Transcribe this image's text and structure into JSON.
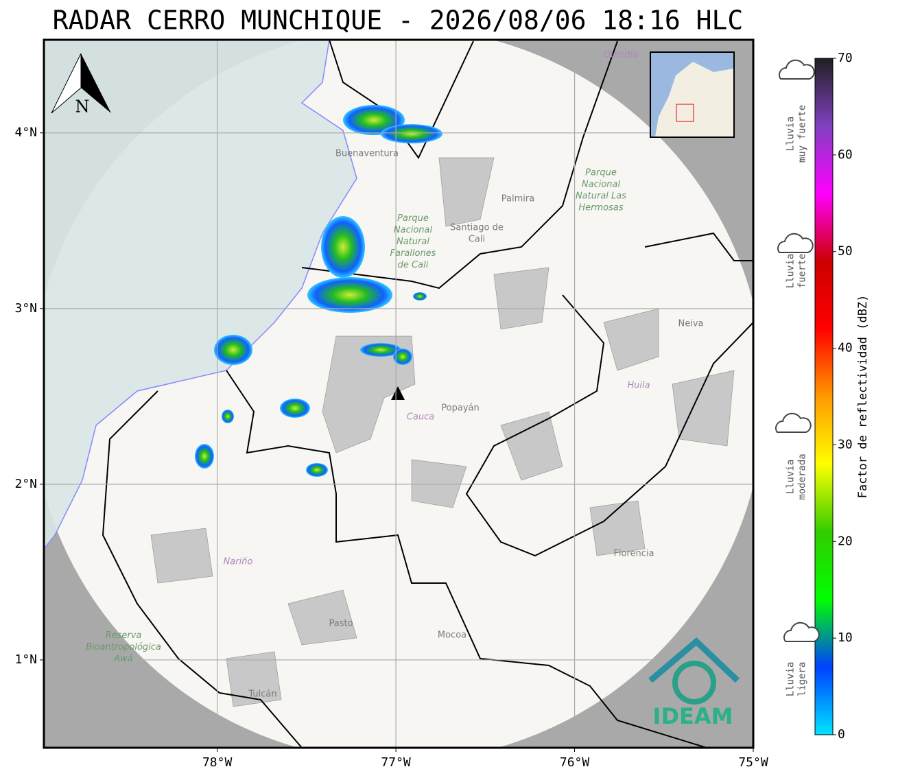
{
  "title": "RADAR CERRO MUNCHIQUE - 2026/08/06 18:16 HLC",
  "map": {
    "xlim": [
      -78.97,
      -75.0
    ],
    "ylim": [
      0.5,
      4.53
    ],
    "xticks": [
      {
        "value": -78,
        "label": "78°W"
      },
      {
        "value": -77,
        "label": "77°W"
      },
      {
        "value": -76,
        "label": "76°W"
      },
      {
        "value": -75,
        "label": "75°W"
      }
    ],
    "yticks": [
      {
        "value": 1,
        "label": "1°N"
      },
      {
        "value": 2,
        "label": "2°N"
      },
      {
        "value": 3,
        "label": "3°N"
      },
      {
        "value": 4,
        "label": "4°N"
      }
    ],
    "grid": true,
    "north": "N",
    "places": [
      "Buenaventura",
      "Parque Nacional Natural Farallones de Cali",
      "Santiago de Cali",
      "Palmira",
      "Parque Nacional Natural Las Hermosas",
      "Quindío",
      "Neiva",
      "Huila",
      "Popayán",
      "Cauca",
      "Nariño",
      "Pasto",
      "Mocoa",
      "Florencia",
      "Reserva Bioantropológica Awá",
      "Tulcán"
    ],
    "logo": "IDEAM"
  },
  "colorbar": {
    "label": "Factor de reflectividad (dBZ)",
    "clim": [
      0,
      70
    ],
    "ticks": [
      0,
      10,
      20,
      30,
      40,
      50,
      60,
      70
    ],
    "colors": [
      "#00e5ff",
      "#0040ff",
      "#00ff00",
      "#33cc00",
      "#ffff00",
      "#ff9900",
      "#ff0000",
      "#cc0000",
      "#ff00ff",
      "#8040c0",
      "#202020"
    ]
  },
  "categories": [
    [
      "Lluvia",
      "muy fuerte"
    ],
    [
      "Lluvia",
      "fuerte"
    ],
    [
      "Lluvia",
      "moderada"
    ],
    [
      "Lluvia",
      "ligera"
    ]
  ]
}
